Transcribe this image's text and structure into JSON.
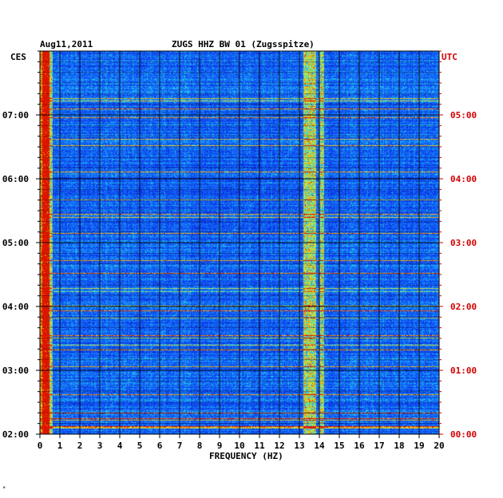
{
  "header": {
    "date": "Aug11,2011",
    "station": "ZUGS HHZ BW 01 (Zugsspitze)",
    "left_tz": "CES",
    "right_tz": "UTC",
    "footer_mark": "*"
  },
  "chart_data": {
    "type": "heatmap",
    "title": "ZUGS HHZ BW 01 (Zugsspitze)",
    "xlabel": "FREQUENCY (HZ)",
    "ylabel_left": "CES",
    "ylabel_right": "UTC",
    "xlim": [
      0,
      20
    ],
    "x_ticks": [
      "0",
      "1",
      "2",
      "3",
      "4",
      "5",
      "6",
      "7",
      "8",
      "9",
      "10",
      "11",
      "12",
      "13",
      "14",
      "15",
      "16",
      "17",
      "18",
      "19",
      "20"
    ],
    "y_ticks_left": [
      "07:00",
      "06:00",
      "05:00",
      "04:00",
      "03:00",
      "02:00"
    ],
    "y_ticks_right": [
      "05:00",
      "04:00",
      "03:00",
      "02:00",
      "01:00",
      "00:00"
    ],
    "y_range_hours_utc": [
      0,
      6
    ],
    "grid": true,
    "colors": {
      "background": "#0a1fd0",
      "grid": "#000000",
      "right_axis": "#d00000"
    },
    "features": [
      {
        "label": "low-frequency energy",
        "freq_hz": [
          0.1,
          0.6
        ]
      },
      {
        "label": "persistent spectral band",
        "freq_hz": [
          13.2,
          13.8
        ]
      },
      {
        "label": "persistent spectral line",
        "freq_hz": [
          14.0,
          14.2
        ]
      }
    ]
  }
}
